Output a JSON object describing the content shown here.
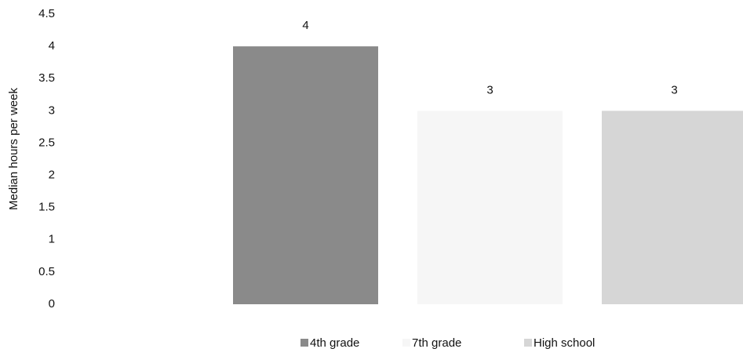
{
  "chart_data": {
    "type": "bar",
    "y_label": "Median hours per week",
    "categories": [
      null
    ],
    "series": [
      {
        "name": "4th grade",
        "color": "#8a8a8a",
        "values": [
          4
        ]
      },
      {
        "name": "7th grade",
        "color": "#f6f6f6",
        "values": [
          3
        ]
      },
      {
        "name": "High school",
        "color": "#d6d6d6",
        "values": [
          3
        ]
      }
    ],
    "ylim": [
      0,
      4.5
    ],
    "yticks": [
      0,
      0.5,
      1,
      1.5,
      2,
      2.5,
      3,
      3.5,
      4,
      4.5
    ],
    "legend": "bottom"
  }
}
